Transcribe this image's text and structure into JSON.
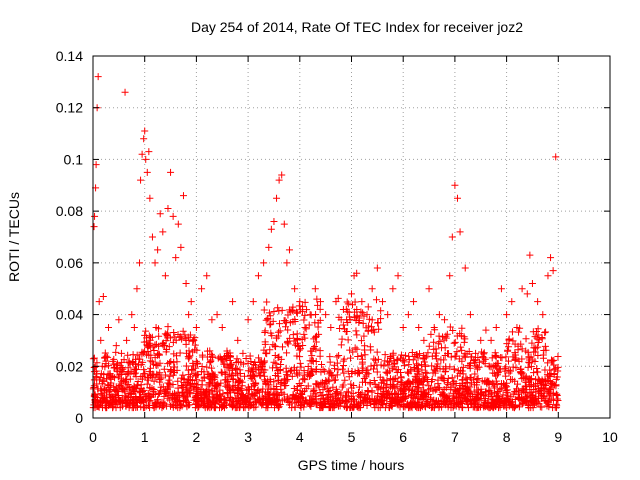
{
  "chart_data": {
    "type": "scatter",
    "title": "Day 254 of 2014, Rate Of TEC Index for receiver joz2",
    "xlabel": "GPS time / hours",
    "ylabel": "ROTI / TECUs",
    "xlim": [
      0,
      10
    ],
    "ylim": [
      0,
      0.14
    ],
    "grid": true,
    "x_ticks": [
      "0",
      "1",
      "2",
      "3",
      "4",
      "5",
      "6",
      "7",
      "8",
      "9",
      "10"
    ],
    "x_tick_values": [
      0,
      1,
      2,
      3,
      4,
      5,
      6,
      7,
      8,
      9,
      10
    ],
    "y_ticks": [
      "0",
      "0.02",
      "0.04",
      "0.06",
      "0.08",
      "0.1",
      "0.12",
      "0.14"
    ],
    "y_tick_values": [
      0,
      0.02,
      0.04,
      0.06,
      0.08,
      0.1,
      0.12,
      0.14
    ],
    "marker": "+",
    "series": [
      {
        "name": "joz2",
        "color": "#ff0000",
        "x": [
          0.02,
          0.03,
          0.05,
          0.06,
          0.08,
          0.1,
          0.12,
          0.15,
          0.18,
          0.2,
          0.25,
          0.3,
          0.35,
          0.4,
          0.45,
          0.5,
          0.55,
          0.6,
          0.62,
          0.65,
          0.7,
          0.75,
          0.8,
          0.85,
          0.9,
          0.92,
          0.95,
          0.98,
          1.0,
          1.02,
          1.05,
          1.08,
          1.1,
          1.15,
          1.2,
          1.25,
          1.3,
          1.35,
          1.4,
          1.45,
          1.5,
          1.55,
          1.6,
          1.65,
          1.7,
          1.75,
          1.8,
          1.85,
          1.9,
          1.95,
          2.0,
          2.1,
          2.2,
          2.3,
          2.4,
          2.5,
          2.6,
          2.7,
          2.8,
          2.9,
          3.0,
          3.1,
          3.2,
          3.3,
          3.4,
          3.45,
          3.5,
          3.55,
          3.6,
          3.65,
          3.7,
          3.75,
          3.8,
          3.9,
          4.0,
          4.1,
          4.2,
          4.3,
          4.4,
          4.5,
          4.6,
          4.7,
          4.8,
          4.9,
          5.0,
          5.05,
          5.1,
          5.2,
          5.3,
          5.4,
          5.5,
          5.6,
          5.7,
          5.8,
          5.9,
          6.0,
          6.1,
          6.2,
          6.3,
          6.4,
          6.5,
          6.6,
          6.7,
          6.8,
          6.9,
          6.95,
          7.0,
          7.05,
          7.1,
          7.2,
          7.3,
          7.4,
          7.5,
          7.6,
          7.7,
          7.8,
          7.9,
          8.0,
          8.1,
          8.2,
          8.3,
          8.4,
          8.45,
          8.5,
          8.6,
          8.7,
          8.8,
          8.85,
          8.9,
          8.95
        ],
        "y": [
          0.074,
          0.078,
          0.089,
          0.098,
          0.12,
          0.132,
          0.045,
          0.03,
          0.02,
          0.047,
          0.022,
          0.035,
          0.015,
          0.012,
          0.028,
          0.038,
          0.025,
          0.018,
          0.126,
          0.03,
          0.022,
          0.04,
          0.035,
          0.05,
          0.06,
          0.092,
          0.102,
          0.108,
          0.111,
          0.1,
          0.095,
          0.103,
          0.085,
          0.07,
          0.06,
          0.065,
          0.079,
          0.072,
          0.055,
          0.081,
          0.095,
          0.078,
          0.062,
          0.075,
          0.066,
          0.086,
          0.052,
          0.04,
          0.045,
          0.03,
          0.035,
          0.05,
          0.055,
          0.038,
          0.04,
          0.035,
          0.025,
          0.045,
          0.03,
          0.025,
          0.038,
          0.045,
          0.055,
          0.06,
          0.066,
          0.073,
          0.076,
          0.085,
          0.092,
          0.094,
          0.075,
          0.06,
          0.065,
          0.05,
          0.045,
          0.035,
          0.04,
          0.05,
          0.045,
          0.04,
          0.035,
          0.045,
          0.038,
          0.042,
          0.048,
          0.055,
          0.056,
          0.045,
          0.04,
          0.05,
          0.058,
          0.045,
          0.04,
          0.05,
          0.055,
          0.035,
          0.04,
          0.045,
          0.035,
          0.03,
          0.05,
          0.035,
          0.04,
          0.038,
          0.055,
          0.07,
          0.09,
          0.085,
          0.072,
          0.058,
          0.04,
          0.025,
          0.03,
          0.034,
          0.03,
          0.035,
          0.05,
          0.04,
          0.045,
          0.035,
          0.05,
          0.048,
          0.063,
          0.052,
          0.045,
          0.04,
          0.055,
          0.062,
          0.057,
          0.101
        ]
      }
    ],
    "dense_band": {
      "description_free": true,
      "x_range": [
        0,
        9
      ],
      "y_floor": 0.004,
      "y_typical": [
        0.005,
        0.025
      ]
    }
  }
}
